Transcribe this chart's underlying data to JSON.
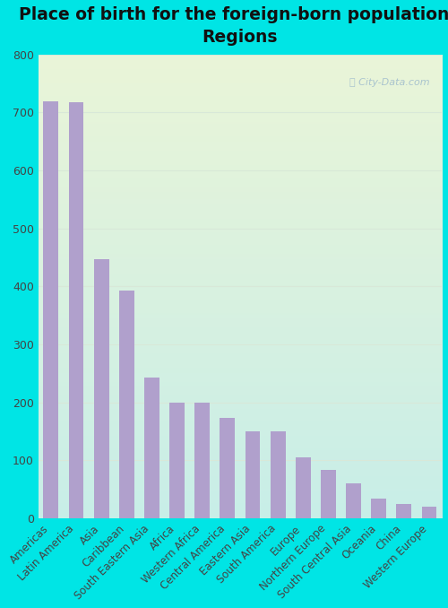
{
  "title": "Place of birth for the foreign-born population -\nRegions",
  "categories": [
    "Americas",
    "Latin America",
    "Asia",
    "Caribbean",
    "South Eastern Asia",
    "Africa",
    "Western Africa",
    "Central America",
    "Eastern Asia",
    "South America",
    "Europe",
    "Northern Europe",
    "South Central Asia",
    "Oceania",
    "China",
    "Western Europe"
  ],
  "values": [
    720,
    718,
    447,
    393,
    243,
    200,
    199,
    173,
    150,
    150,
    105,
    83,
    60,
    35,
    25,
    20
  ],
  "bar_color": "#b0a0cc",
  "outer_bg": "#00e5e5",
  "inner_bg_top_left": "#eaf5d8",
  "inner_bg_bottom_right": "#c8eee8",
  "ylim": [
    0,
    800
  ],
  "yticks": [
    0,
    100,
    200,
    300,
    400,
    500,
    600,
    700,
    800
  ],
  "title_fontsize": 13.5,
  "tick_label_fontsize": 8.5,
  "ytick_fontsize": 9,
  "title_color": "#111111",
  "tick_color": "#444444",
  "grid_color": "#d8e8d8",
  "watermark": "City-Data.com"
}
